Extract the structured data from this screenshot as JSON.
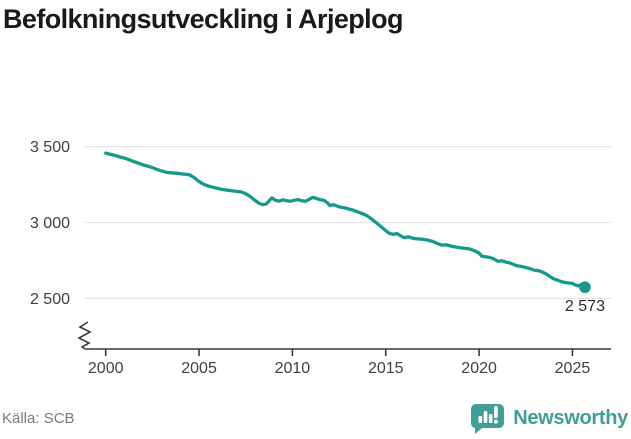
{
  "header": {
    "title": "Befolkningsutveckling i Arjeplog"
  },
  "footer": {
    "source": "Källa: SCB",
    "brand": "Newsworthy"
  },
  "colors": {
    "line": "#149a8d",
    "brand_teal": "#3f9e97",
    "grid": "#e3e3e3",
    "axis": "#3a3a3a",
    "tick_label": "#404040",
    "title": "#1a1a1a",
    "source_text": "#7a7a7a",
    "end_label": "#2b2b2b"
  },
  "chart_data": {
    "type": "line",
    "title": "Befolkningsutveckling i Arjeplog",
    "xlabel": "",
    "ylabel": "",
    "x_ticks": [
      2000,
      2005,
      2010,
      2015,
      2020,
      2025
    ],
    "y_ticks": [
      3500,
      3000,
      2500
    ],
    "y_tick_labels": [
      "3 500",
      "3 000",
      "2 500"
    ],
    "xlim": [
      1998.9,
      2027.1
    ],
    "ylim": [
      2400,
      3550
    ],
    "grid": "horizontal",
    "axis_break": true,
    "legend": "none",
    "end_label": "2 573",
    "end_value": 2573,
    "series": [
      {
        "name": "Befolkning",
        "points": [
          [
            2000.0,
            3458
          ],
          [
            2000.17,
            3452
          ],
          [
            2000.33,
            3448
          ],
          [
            2000.5,
            3442
          ],
          [
            2000.67,
            3436
          ],
          [
            2000.83,
            3430
          ],
          [
            2001.0,
            3425
          ],
          [
            2001.25,
            3414
          ],
          [
            2001.5,
            3402
          ],
          [
            2001.75,
            3392
          ],
          [
            2002.0,
            3380
          ],
          [
            2002.25,
            3372
          ],
          [
            2002.5,
            3362
          ],
          [
            2002.75,
            3350
          ],
          [
            2003.0,
            3340
          ],
          [
            2003.25,
            3331
          ],
          [
            2003.5,
            3328
          ],
          [
            2003.75,
            3325
          ],
          [
            2004.0,
            3322
          ],
          [
            2004.25,
            3318
          ],
          [
            2004.5,
            3314
          ],
          [
            2004.75,
            3295
          ],
          [
            2005.0,
            3270
          ],
          [
            2005.25,
            3252
          ],
          [
            2005.5,
            3240
          ],
          [
            2005.75,
            3232
          ],
          [
            2006.0,
            3225
          ],
          [
            2006.25,
            3218
          ],
          [
            2006.5,
            3214
          ],
          [
            2006.75,
            3209
          ],
          [
            2007.0,
            3205
          ],
          [
            2007.25,
            3202
          ],
          [
            2007.5,
            3190
          ],
          [
            2007.75,
            3170
          ],
          [
            2008.0,
            3145
          ],
          [
            2008.2,
            3128
          ],
          [
            2008.4,
            3118
          ],
          [
            2008.6,
            3122
          ],
          [
            2008.8,
            3150
          ],
          [
            2008.9,
            3162
          ],
          [
            2009.1,
            3146
          ],
          [
            2009.3,
            3141
          ],
          [
            2009.5,
            3150
          ],
          [
            2009.7,
            3143
          ],
          [
            2009.9,
            3140
          ],
          [
            2010.1,
            3147
          ],
          [
            2010.3,
            3151
          ],
          [
            2010.5,
            3143
          ],
          [
            2010.7,
            3140
          ],
          [
            2010.9,
            3153
          ],
          [
            2011.1,
            3166
          ],
          [
            2011.3,
            3158
          ],
          [
            2011.5,
            3150
          ],
          [
            2011.7,
            3146
          ],
          [
            2011.9,
            3128
          ],
          [
            2012.0,
            3112
          ],
          [
            2012.2,
            3118
          ],
          [
            2012.4,
            3108
          ],
          [
            2012.6,
            3100
          ],
          [
            2012.8,
            3096
          ],
          [
            2013.0,
            3090
          ],
          [
            2013.25,
            3082
          ],
          [
            2013.5,
            3070
          ],
          [
            2013.75,
            3058
          ],
          [
            2014.0,
            3045
          ],
          [
            2014.25,
            3022
          ],
          [
            2014.5,
            2998
          ],
          [
            2014.75,
            2972
          ],
          [
            2015.0,
            2945
          ],
          [
            2015.2,
            2928
          ],
          [
            2015.4,
            2922
          ],
          [
            2015.6,
            2927
          ],
          [
            2015.8,
            2912
          ],
          [
            2016.0,
            2900
          ],
          [
            2016.2,
            2906
          ],
          [
            2016.4,
            2898
          ],
          [
            2016.6,
            2893
          ],
          [
            2016.8,
            2891
          ],
          [
            2017.0,
            2889
          ],
          [
            2017.25,
            2884
          ],
          [
            2017.5,
            2876
          ],
          [
            2017.75,
            2862
          ],
          [
            2018.0,
            2851
          ],
          [
            2018.25,
            2853
          ],
          [
            2018.5,
            2844
          ],
          [
            2018.75,
            2838
          ],
          [
            2019.0,
            2833
          ],
          [
            2019.25,
            2829
          ],
          [
            2019.5,
            2825
          ],
          [
            2019.75,
            2814
          ],
          [
            2020.0,
            2798
          ],
          [
            2020.15,
            2778
          ],
          [
            2020.35,
            2774
          ],
          [
            2020.55,
            2770
          ],
          [
            2020.75,
            2762
          ],
          [
            2021.0,
            2745
          ],
          [
            2021.2,
            2748
          ],
          [
            2021.4,
            2740
          ],
          [
            2021.6,
            2735
          ],
          [
            2021.8,
            2726
          ],
          [
            2022.0,
            2716
          ],
          [
            2022.2,
            2712
          ],
          [
            2022.4,
            2706
          ],
          [
            2022.6,
            2700
          ],
          [
            2022.8,
            2692
          ],
          [
            2023.0,
            2684
          ],
          [
            2023.2,
            2682
          ],
          [
            2023.4,
            2672
          ],
          [
            2023.6,
            2660
          ],
          [
            2023.8,
            2643
          ],
          [
            2024.0,
            2628
          ],
          [
            2024.2,
            2620
          ],
          [
            2024.4,
            2610
          ],
          [
            2024.6,
            2604
          ],
          [
            2024.8,
            2601
          ],
          [
            2025.0,
            2598
          ],
          [
            2025.15,
            2588
          ],
          [
            2025.3,
            2582
          ],
          [
            2025.45,
            2590
          ],
          [
            2025.67,
            2573
          ]
        ]
      }
    ]
  }
}
